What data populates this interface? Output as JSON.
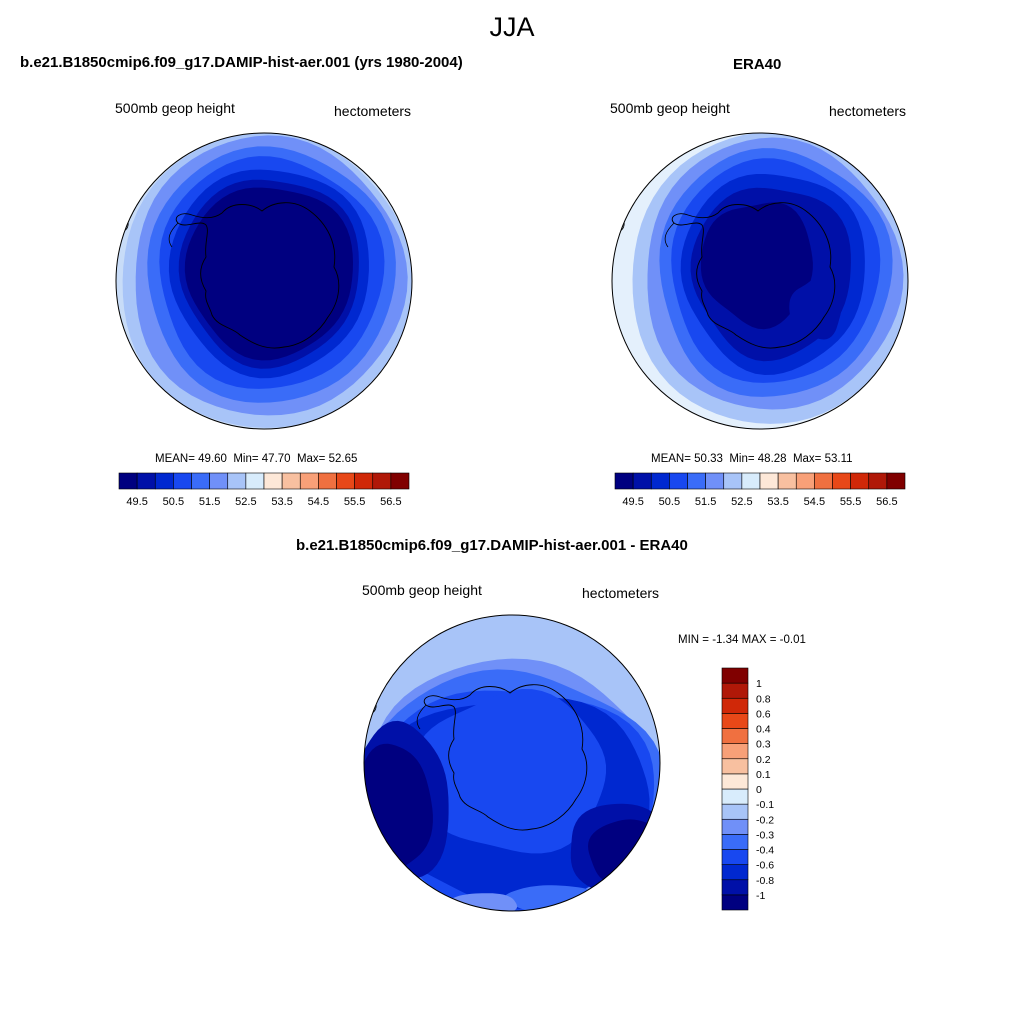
{
  "figure": {
    "title": "JJA",
    "panel_left": {
      "title": "b.e21.B1850cmip6.f09_g17.DAMIP-hist-aer.001 (yrs 1980-2004)",
      "variable": "500mb geop height",
      "units": "hectometers",
      "stats": {
        "mean_label": "MEAN=",
        "mean": "49.60",
        "min_label": "Min=",
        "min": "47.70",
        "max_label": "Max=",
        "max": "52.65"
      }
    },
    "panel_right": {
      "title": "ERA40",
      "variable": "500mb geop height",
      "units": "hectometers",
      "stats": {
        "mean_label": "MEAN=",
        "mean": "50.33",
        "min_label": "Min=",
        "min": "48.28",
        "max_label": "Max=",
        "max": "53.11"
      }
    },
    "panel_diff": {
      "title": "b.e21.B1850cmip6.f09_g17.DAMIP-hist-aer.001 - ERA40",
      "variable": "500mb geop height",
      "units": "hectometers",
      "stats": {
        "min_label": "MIN =",
        "min": "-1.34",
        "max_label": "MAX =",
        "max": "-0.01"
      }
    }
  },
  "chart_data": [
    {
      "type": "heatmap",
      "projection": "south polar stereographic",
      "field": "500mb geop height",
      "units": "hectometers",
      "stats": {
        "mean": 49.6,
        "min": 47.7,
        "max": 52.65
      },
      "colorbar": {
        "orientation": "horizontal",
        "levels": [
          49.5,
          50.5,
          51.5,
          52.5,
          53.5,
          54.5,
          55.5,
          56.5
        ],
        "tick_labels": [
          "49.5",
          "50.5",
          "51.5",
          "52.5",
          "53.5",
          "54.5",
          "55.5",
          "56.5"
        ],
        "colors": [
          "#000080",
          "#0010a8",
          "#0028d0",
          "#1848f0",
          "#3a6cf8",
          "#7090f8",
          "#a8c4f8",
          "#d8ecfc",
          "#fde8d8",
          "#f8c0a0",
          "#f8a078",
          "#f07040",
          "#e84818",
          "#d02808",
          "#b01808",
          "#800000"
        ]
      }
    },
    {
      "type": "heatmap",
      "projection": "south polar stereographic",
      "field": "500mb geop height",
      "units": "hectometers",
      "stats": {
        "mean": 50.33,
        "min": 48.28,
        "max": 53.11
      },
      "colorbar": {
        "orientation": "horizontal",
        "levels": [
          49.5,
          50.5,
          51.5,
          52.5,
          53.5,
          54.5,
          55.5,
          56.5
        ],
        "tick_labels": [
          "49.5",
          "50.5",
          "51.5",
          "52.5",
          "53.5",
          "54.5",
          "55.5",
          "56.5"
        ],
        "colors": [
          "#000080",
          "#0010a8",
          "#0028d0",
          "#1848f0",
          "#3a6cf8",
          "#7090f8",
          "#a8c4f8",
          "#d8ecfc",
          "#fde8d8",
          "#f8c0a0",
          "#f8a078",
          "#f07040",
          "#e84818",
          "#d02808",
          "#b01808",
          "#800000"
        ]
      }
    },
    {
      "type": "heatmap",
      "projection": "south polar stereographic",
      "field": "500mb geop height difference",
      "units": "hectometers",
      "stats": {
        "min": -1.34,
        "max": -0.01
      },
      "colorbar": {
        "orientation": "vertical",
        "levels": [
          -1,
          -0.8,
          -0.6,
          -0.4,
          -0.3,
          -0.2,
          -0.1,
          0,
          0.1,
          0.2,
          0.3,
          0.4,
          0.6,
          0.8,
          1
        ],
        "tick_labels": [
          "-1",
          "-0.8",
          "-0.6",
          "-0.4",
          "-0.3",
          "-0.2",
          "-0.1",
          "0",
          "0.1",
          "0.2",
          "0.3",
          "0.4",
          "0.6",
          "0.8",
          "1"
        ],
        "colors": [
          "#000080",
          "#0010a8",
          "#0028d0",
          "#1848f0",
          "#3a6cf8",
          "#7090f8",
          "#a8c4f8",
          "#d8ecfc",
          "#fde8d8",
          "#f8c0a0",
          "#f8a078",
          "#f07040",
          "#e84818",
          "#d02808",
          "#b01808",
          "#800000"
        ]
      }
    }
  ]
}
